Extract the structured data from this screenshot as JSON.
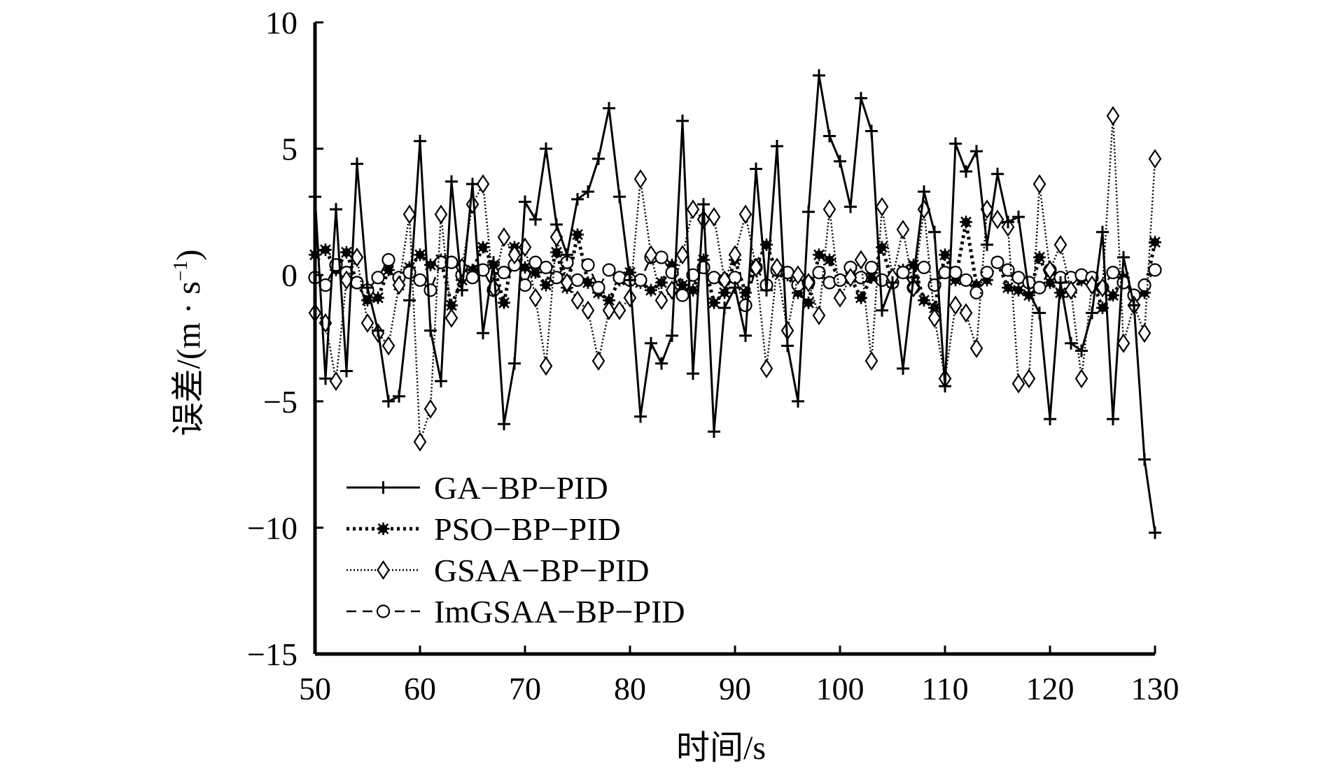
{
  "chart_data": {
    "type": "line",
    "xlabel": "时间/s",
    "ylabel": "误差/(m · s",
    "ylabel_sup": "−1",
    "ylabel_close": ")",
    "xlim": [
      50,
      130
    ],
    "ylim": [
      -15,
      10
    ],
    "xticks": [
      50,
      60,
      70,
      80,
      90,
      100,
      110,
      120,
      130
    ],
    "xtick_labels": [
      "50",
      "60",
      "70",
      "80",
      "90",
      "100",
      "110",
      "120",
      "130"
    ],
    "yticks": [
      10,
      5,
      0,
      -5,
      -10,
      -15
    ],
    "ytick_labels": [
      "10",
      "5",
      "0",
      "−5",
      "−10",
      "−15"
    ],
    "grid": false,
    "legend_position": "lower-left",
    "x": [
      50,
      51,
      52,
      53,
      54,
      55,
      56,
      57,
      58,
      59,
      60,
      61,
      62,
      63,
      64,
      65,
      66,
      67,
      68,
      69,
      70,
      71,
      72,
      73,
      74,
      75,
      76,
      77,
      78,
      79,
      80,
      81,
      82,
      83,
      84,
      85,
      86,
      87,
      88,
      89,
      90,
      91,
      92,
      93,
      94,
      95,
      96,
      97,
      98,
      99,
      100,
      101,
      102,
      103,
      104,
      105,
      106,
      107,
      108,
      109,
      110,
      111,
      112,
      113,
      114,
      115,
      116,
      117,
      118,
      119,
      120,
      121,
      122,
      123,
      124,
      125,
      126,
      127,
      128,
      129,
      130
    ],
    "series": [
      {
        "name": "GA−BP−PID",
        "style": "solid",
        "marker": "plus",
        "values": [
          3.1,
          -4.1,
          2.6,
          -3.8,
          4.4,
          -0.5,
          -2.2,
          -5.0,
          -4.8,
          -1.0,
          5.3,
          -2.2,
          -4.2,
          3.7,
          -0.6,
          3.6,
          -2.3,
          0.5,
          -5.9,
          -3.5,
          2.9,
          2.2,
          5.0,
          2.0,
          0.8,
          3.0,
          3.3,
          4.6,
          6.6,
          3.1,
          -0.2,
          -5.6,
          -2.7,
          -3.5,
          -2.4,
          6.1,
          -3.9,
          2.8,
          -6.2,
          -1.3,
          -0.5,
          -2.4,
          4.2,
          -0.6,
          5.1,
          -2.8,
          -5.0,
          2.5,
          7.9,
          5.5,
          4.5,
          2.7,
          7.0,
          5.7,
          -1.4,
          -0.3,
          -3.7,
          -0.1,
          3.3,
          1.7,
          -4.4,
          5.2,
          4.1,
          4.9,
          1.2,
          4.0,
          2.1,
          2.3,
          -0.7,
          -1.5,
          -5.7,
          -0.3,
          -2.7,
          -3.0,
          -1.5,
          1.7,
          -5.7,
          0.7,
          -1.2,
          -7.3,
          -10.2
        ]
      },
      {
        "name": "PSO−BP−PID",
        "style": "dotted-thick",
        "marker": "star",
        "values": [
          0.8,
          1.0,
          0.2,
          0.9,
          -0.3,
          -1.0,
          -0.9,
          0.2,
          -0.4,
          0.3,
          0.8,
          0.4,
          0.6,
          -1.2,
          -0.2,
          0.2,
          1.1,
          0.4,
          -1.1,
          1.1,
          0.3,
          0.1,
          -0.4,
          0.9,
          -0.5,
          1.6,
          -0.3,
          -0.7,
          -1.0,
          -0.2,
          0.1,
          -0.3,
          -0.6,
          -0.3,
          0.4,
          -0.4,
          -0.6,
          0.6,
          -1.1,
          -0.7,
          0.6,
          -0.7,
          0.4,
          1.2,
          0.1,
          0.0,
          -0.7,
          -1.1,
          0.8,
          0.6,
          -0.2,
          -0.1,
          -0.9,
          -0.1,
          1.1,
          -0.3,
          0.2,
          0.4,
          -1.0,
          -1.3,
          0.8,
          -0.2,
          2.1,
          -0.4,
          -0.2,
          0.5,
          -0.5,
          -0.6,
          -0.8,
          0.7,
          -0.3,
          -0.7,
          -0.7,
          -0.2,
          -0.2,
          -1.3,
          -0.8,
          -0.1,
          -0.8,
          -0.7,
          1.3
        ]
      },
      {
        "name": "GSAA−BP−PID",
        "style": "dotted",
        "marker": "diamond",
        "values": [
          -1.5,
          -1.9,
          -4.2,
          -0.2,
          0.7,
          -1.9,
          -2.3,
          -2.8,
          -0.4,
          2.4,
          -6.6,
          -5.3,
          2.4,
          -1.7,
          0.3,
          2.8,
          3.6,
          -0.5,
          1.5,
          0.8,
          1.1,
          -0.9,
          -3.6,
          1.5,
          -0.3,
          -1.0,
          -1.4,
          -3.4,
          -1.4,
          -1.4,
          -0.9,
          3.8,
          0.8,
          -1.0,
          -0.6,
          0.8,
          2.6,
          2.2,
          2.3,
          -0.2,
          0.8,
          2.4,
          0.3,
          -3.7,
          0.3,
          -2.2,
          0.0,
          -0.3,
          -1.6,
          2.6,
          -0.9,
          -0.1,
          0.6,
          -3.4,
          2.7,
          -0.1,
          1.8,
          -0.5,
          2.6,
          -1.7,
          -4.1,
          -1.2,
          -1.5,
          -2.9,
          2.6,
          2.2,
          1.9,
          -4.3,
          -4.1,
          3.6,
          0.2,
          1.2,
          -0.6,
          -4.1,
          -0.4,
          -0.5,
          6.3,
          -2.7,
          -1.2,
          -2.3,
          4.6
        ]
      },
      {
        "name": "ImGSAA−BP−PID",
        "style": "dashed",
        "marker": "circle",
        "values": [
          -0.1,
          -0.4,
          0.4,
          0.1,
          -0.3,
          -0.6,
          -0.1,
          0.6,
          -0.1,
          0.1,
          -0.2,
          -0.6,
          0.5,
          0.5,
          0.0,
          -0.1,
          0.2,
          -0.6,
          0.1,
          0.4,
          -0.4,
          0.5,
          0.3,
          -0.1,
          0.5,
          -0.2,
          0.4,
          -0.5,
          0.2,
          -0.1,
          -0.2,
          -0.2,
          0.7,
          0.7,
          0.1,
          -0.8,
          0.0,
          0.3,
          -0.1,
          -0.2,
          -0.1,
          -1.2,
          0.3,
          -0.4,
          0.2,
          0.1,
          -0.4,
          -0.3,
          0.1,
          -0.3,
          -0.2,
          0.3,
          -0.1,
          0.3,
          -0.2,
          -0.3,
          0.1,
          -0.5,
          0.3,
          -0.4,
          0.1,
          0.1,
          -0.2,
          -0.7,
          0.1,
          0.5,
          0.2,
          -0.1,
          -0.3,
          -0.5,
          0.2,
          -0.1,
          -0.1,
          0.0,
          -0.1,
          -0.5,
          0.1,
          -0.3,
          -0.8,
          -0.4,
          0.2
        ]
      }
    ]
  }
}
